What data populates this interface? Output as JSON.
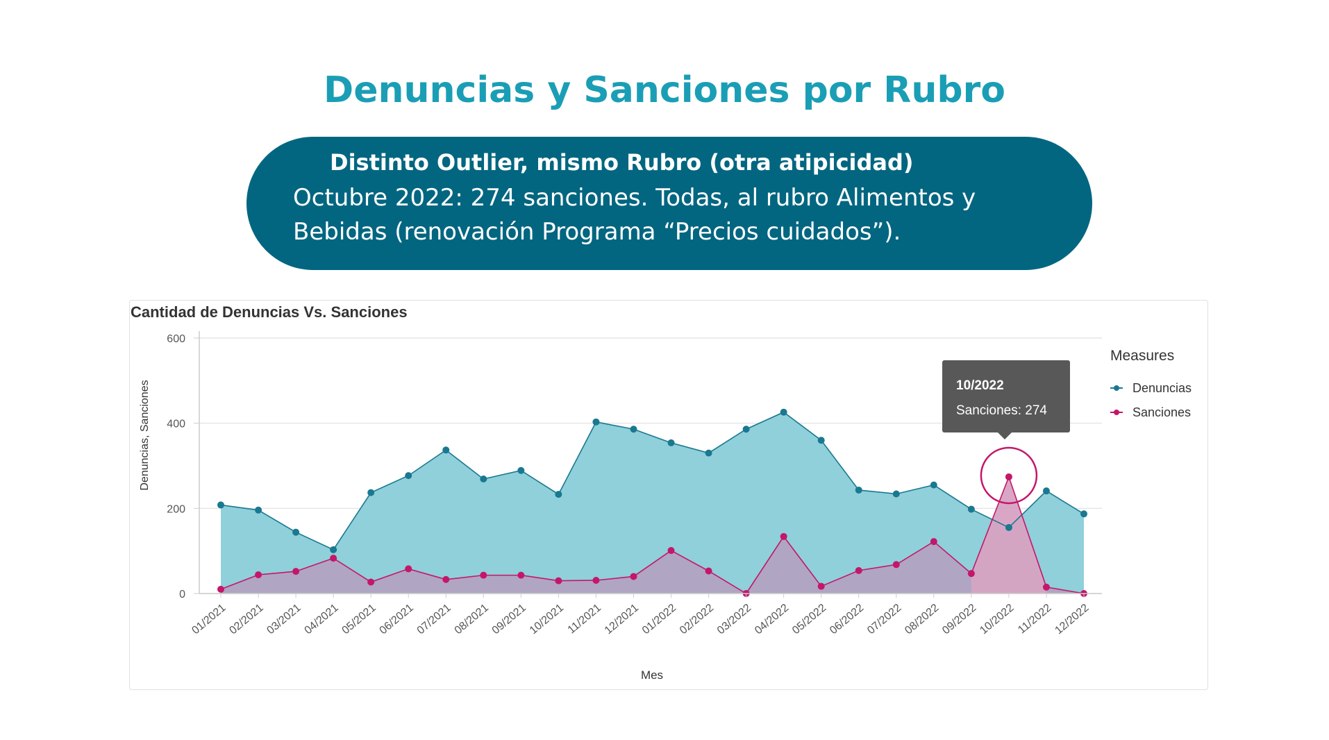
{
  "slide": {
    "title": "Denuncias y Sanciones por Rubro",
    "callout_heading": "Distinto Outlier, mismo Rubro (otra atipicidad)",
    "callout_body": "Octubre 2022: 274 sanciones. Todas, al rubro Alimentos y Bebidas (renovación Programa “Precios cuidados”)."
  },
  "colors": {
    "title": "#1a9eb5",
    "callout_bg": "#036681",
    "denuncias": "#1a7890",
    "denuncias_fill": "#8fd0da",
    "sanciones": "#c4166a",
    "sanciones_fill": "#b4a0bf",
    "tooltip_bg": "#585858"
  },
  "chart_data": {
    "type": "area",
    "title": "Cantidad de Denuncias Vs. Sanciones",
    "xlabel": "Mes",
    "ylabel": "Denuncias, Sanciones",
    "ylim": [
      0,
      600
    ],
    "yticks": [
      0,
      200,
      400,
      600
    ],
    "grid": true,
    "legend_title": "Measures",
    "legend_position": "right",
    "categories": [
      "01/2021",
      "02/2021",
      "03/2021",
      "04/2021",
      "05/2021",
      "06/2021",
      "07/2021",
      "08/2021",
      "09/2021",
      "10/2021",
      "11/2021",
      "12/2021",
      "01/2022",
      "02/2022",
      "03/2022",
      "04/2022",
      "05/2022",
      "06/2022",
      "07/2022",
      "08/2022",
      "09/2022",
      "10/2022",
      "11/2022",
      "12/2022"
    ],
    "series": [
      {
        "name": "Denuncias",
        "values": [
          208,
          196,
          144,
          103,
          237,
          277,
          337,
          269,
          289,
          233,
          403,
          386,
          354,
          330,
          386,
          426,
          360,
          243,
          234,
          255,
          198,
          155,
          241,
          187
        ]
      },
      {
        "name": "Sanciones",
        "values": [
          10,
          44,
          52,
          83,
          27,
          58,
          33,
          43,
          43,
          30,
          31,
          40,
          101,
          53,
          0,
          134,
          17,
          54,
          68,
          122,
          47,
          274,
          15,
          0
        ]
      }
    ],
    "tooltip": {
      "category": "10/2022",
      "series_label": "Sanciones",
      "value_text": "Sanciones: 274"
    },
    "highlight": {
      "category": "10/2022",
      "series": "Sanciones"
    }
  }
}
